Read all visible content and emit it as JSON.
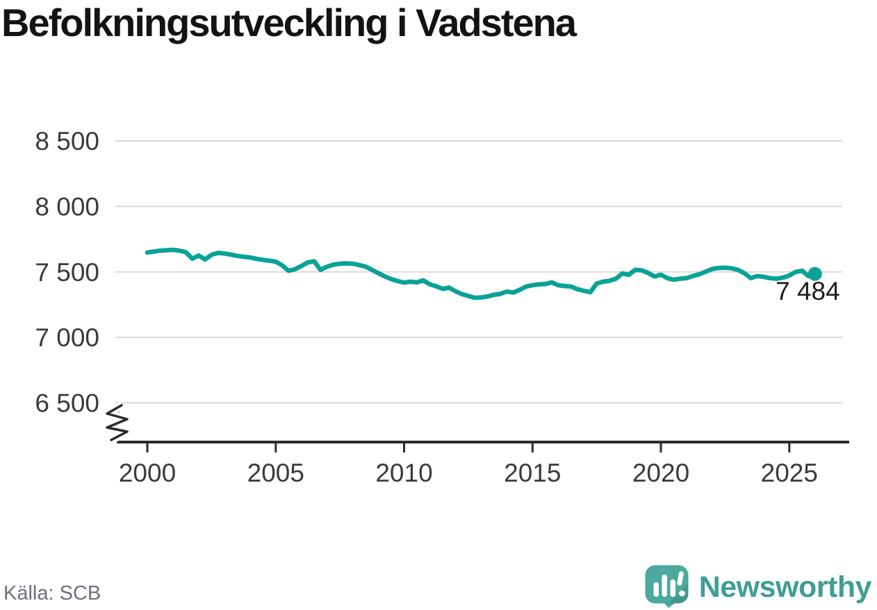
{
  "title": "Befolkningsutveckling i Vadstena",
  "source": {
    "label": "Källa: SCB"
  },
  "branding": {
    "name": "Newsworthy"
  },
  "colors": {
    "title": "#131313",
    "line": "#0aa296",
    "grid": "#d9d9d9",
    "axis": "#2b2b2b",
    "tick_label": "#3a3a3a",
    "end_label": "#1d1d1d",
    "source_text": "#6f6f78",
    "wordmark": "#3f9e96",
    "logo_icon": "#4ba99e"
  },
  "chart_data": {
    "type": "line",
    "title": "Befolkningsutveckling i Vadstena",
    "xlabel": "",
    "ylabel": "",
    "xlim": [
      2000,
      2026
    ],
    "ylim": [
      6500,
      8500
    ],
    "grid": "horizontal",
    "axis_break": true,
    "legend_position": "none",
    "x_ticks": [
      2000,
      2005,
      2010,
      2015,
      2020,
      2025
    ],
    "x_tick_labels": [
      "2000",
      "2005",
      "2010",
      "2015",
      "2020",
      "2025"
    ],
    "y_ticks": [
      8500,
      8000,
      7500,
      7000,
      6500
    ],
    "y_tick_labels": [
      "8 500",
      "8 000",
      "7 500",
      "7 000",
      "6 500"
    ],
    "end_label": "7 484",
    "end_value": 7484,
    "line_color": "#0aa296",
    "x": [
      2000,
      2000.25,
      2000.5,
      2000.75,
      2001,
      2001.25,
      2001.5,
      2001.75,
      2002,
      2002.25,
      2002.5,
      2002.75,
      2003,
      2003.25,
      2003.5,
      2003.75,
      2004,
      2004.25,
      2004.5,
      2004.75,
      2005,
      2005.25,
      2005.5,
      2005.75,
      2006,
      2006.25,
      2006.5,
      2006.75,
      2007,
      2007.25,
      2007.5,
      2007.75,
      2008,
      2008.25,
      2008.5,
      2008.75,
      2009,
      2009.25,
      2009.5,
      2009.75,
      2010,
      2010.25,
      2010.5,
      2010.75,
      2011,
      2011.25,
      2011.5,
      2011.75,
      2012,
      2012.25,
      2012.5,
      2012.75,
      2013,
      2013.25,
      2013.5,
      2013.75,
      2014,
      2014.25,
      2014.5,
      2014.75,
      2015,
      2015.25,
      2015.5,
      2015.75,
      2016,
      2016.25,
      2016.5,
      2016.75,
      2017,
      2017.25,
      2017.5,
      2017.75,
      2018,
      2018.25,
      2018.5,
      2018.75,
      2019,
      2019.25,
      2019.5,
      2019.75,
      2020,
      2020.25,
      2020.5,
      2020.75,
      2021,
      2021.25,
      2021.5,
      2021.75,
      2022,
      2022.25,
      2022.5,
      2022.75,
      2023,
      2023.25,
      2023.5,
      2023.75,
      2024,
      2024.25,
      2024.5,
      2024.75,
      2025,
      2025.25,
      2025.5,
      2025.75,
      2026
    ],
    "y": [
      7648,
      7655,
      7662,
      7665,
      7668,
      7662,
      7650,
      7600,
      7625,
      7595,
      7630,
      7645,
      7640,
      7632,
      7622,
      7615,
      7610,
      7600,
      7592,
      7585,
      7578,
      7550,
      7508,
      7520,
      7545,
      7572,
      7580,
      7515,
      7540,
      7555,
      7562,
      7565,
      7562,
      7552,
      7540,
      7515,
      7490,
      7465,
      7445,
      7430,
      7418,
      7425,
      7420,
      7435,
      7405,
      7390,
      7370,
      7380,
      7352,
      7330,
      7316,
      7302,
      7305,
      7312,
      7325,
      7332,
      7350,
      7342,
      7362,
      7388,
      7398,
      7405,
      7407,
      7420,
      7398,
      7392,
      7388,
      7368,
      7355,
      7345,
      7410,
      7425,
      7432,
      7448,
      7488,
      7478,
      7515,
      7512,
      7492,
      7465,
      7478,
      7452,
      7440,
      7448,
      7452,
      7468,
      7482,
      7502,
      7522,
      7530,
      7532,
      7528,
      7515,
      7490,
      7452,
      7468,
      7462,
      7452,
      7448,
      7455,
      7472,
      7500,
      7508,
      7468,
      7484
    ]
  }
}
